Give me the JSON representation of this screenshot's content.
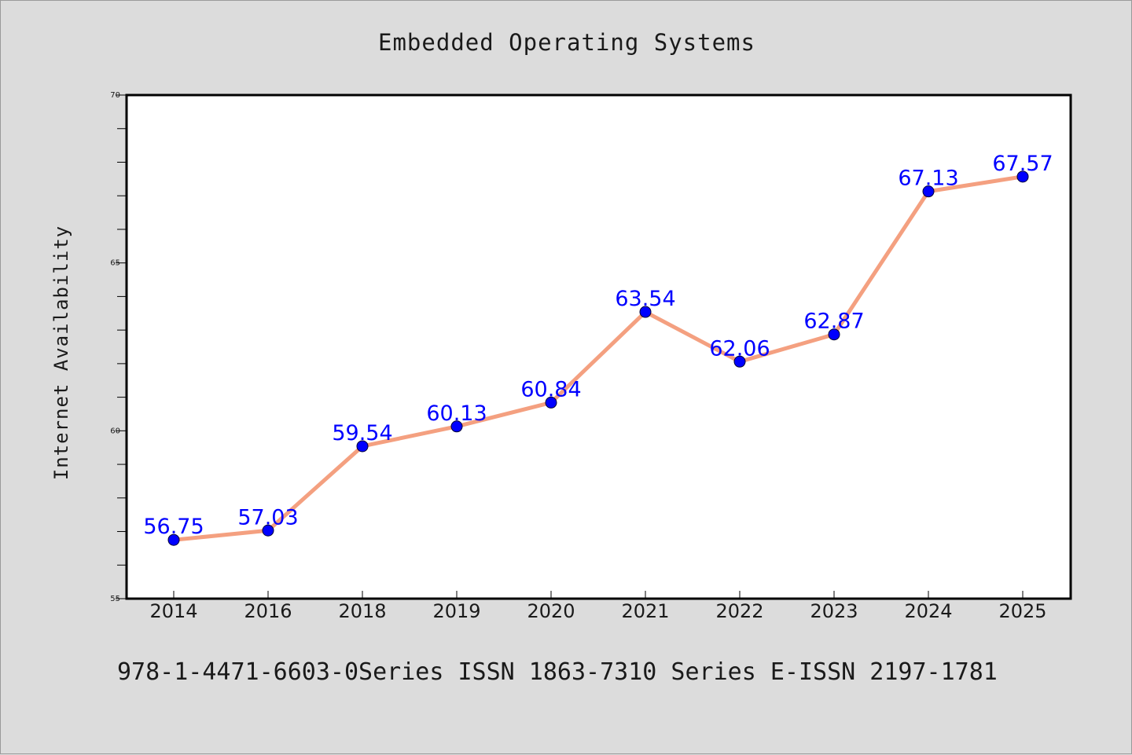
{
  "chart_data": {
    "type": "line",
    "title": "Embedded Operating Systems",
    "xlabel": "",
    "ylabel": "Internet Availability",
    "categories": [
      "2014",
      "2016",
      "2018",
      "2019",
      "2020",
      "2021",
      "2022",
      "2023",
      "2024",
      "2025"
    ],
    "series": [
      {
        "values": [
          56.75,
          57.03,
          59.54,
          60.13,
          60.84,
          63.54,
          62.06,
          62.87,
          67.13,
          67.57
        ],
        "data_labels": [
          "56.75",
          "57.03",
          "59.54",
          "60.13",
          "60.84",
          "63.54",
          "62.06",
          "62.87",
          "67.13",
          "67.57"
        ],
        "line_color": "#f4a080",
        "marker_color": "#0000ff",
        "label_color": "#0000ff"
      }
    ],
    "ylim": [
      55,
      70
    ],
    "yticks": [
      "55",
      "60",
      "65",
      "70"
    ],
    "minor_ytick_step": 1,
    "grid": false,
    "legend": "none",
    "footer": "978-1-4471-6603-0Series ISSN 1863-7310 Series E-ISSN 2197-1781"
  },
  "colors": {
    "background": "#dcdcdc",
    "plot_background": "#ffffff",
    "axis": "#000000",
    "text": "#1a1a1a"
  }
}
